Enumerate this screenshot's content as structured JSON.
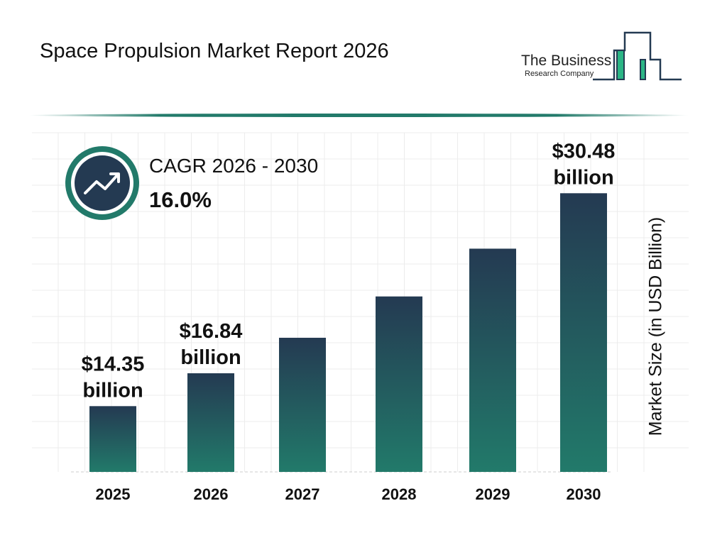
{
  "header": {
    "title": "Space Propulsion Market Report 2026"
  },
  "logo": {
    "line1": "The Business",
    "line2": "Research Company"
  },
  "cagr": {
    "label": "CAGR 2026 - 2030",
    "value": "16.0%",
    "icon": "trending-up-icon"
  },
  "colors": {
    "bar_top": "#243a52",
    "bar_bottom": "#227a6a",
    "accent": "#227a6a"
  },
  "chart_data": {
    "type": "bar",
    "title": "",
    "xlabel": "",
    "ylabel": "Market Size (in USD Billion)",
    "categories": [
      "2025",
      "2026",
      "2027",
      "2028",
      "2029",
      "2030"
    ],
    "values": [
      14.35,
      16.84,
      19.53,
      22.66,
      26.28,
      30.48
    ],
    "data_labels": [
      "$14.35\nbillion",
      "$16.84\nbillion",
      "",
      "",
      "",
      "$30.48\nbillion"
    ],
    "grid": true
  }
}
